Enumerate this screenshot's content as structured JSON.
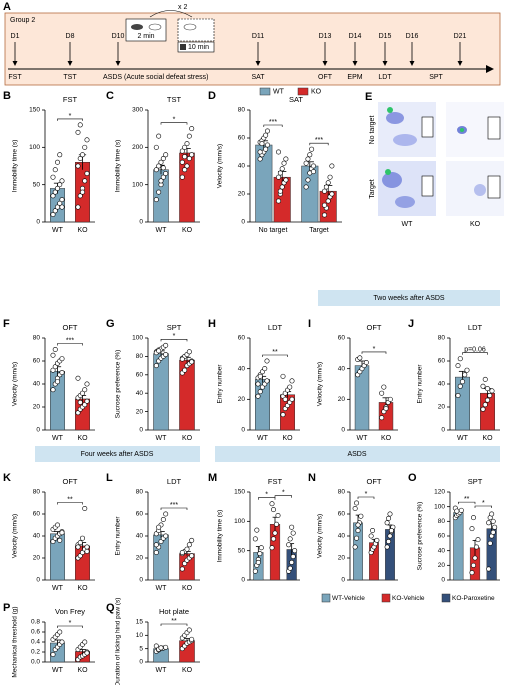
{
  "timeline": {
    "label": "A",
    "group": "Group 2",
    "cycle": "x 2",
    "durations": [
      "2 min",
      "10 min"
    ],
    "days": [
      "D1",
      "D8",
      "D10",
      "D11",
      "D13",
      "D14",
      "D15",
      "D16",
      "D21"
    ],
    "tests": [
      "FST",
      "TST",
      "ASDS (Acute social defeat stress)",
      "SAT",
      "OFT",
      "EPM",
      "LDT",
      "SPT"
    ]
  },
  "heatmap": {
    "label": "E",
    "rows": [
      "No target",
      "Target"
    ],
    "columns": [
      "WT",
      "KO"
    ]
  },
  "banners": [
    "Two weeks after ASDS",
    "Four weeks after ASDS",
    "ASDS"
  ],
  "chart_data": [
    {
      "type": "bar",
      "label": "B",
      "title": "FST",
      "ylabel": "Immobility time (s)",
      "categories": [
        "WT",
        "KO"
      ],
      "values": [
        45,
        80
      ],
      "errors": [
        7,
        10
      ],
      "points": [
        [
          10,
          15,
          20,
          25,
          30,
          35,
          40,
          45,
          50,
          55,
          60,
          70,
          80,
          90,
          20
        ],
        [
          20,
          35,
          45,
          55,
          65,
          75,
          85,
          90,
          100,
          110,
          120,
          130,
          40
        ]
      ],
      "colors": [
        "#7aa5bb",
        "#d42a2a"
      ],
      "ylim": [
        0,
        150
      ],
      "yticks": [
        0,
        50,
        100,
        150
      ],
      "significance": [
        {
          "label": "*",
          "between": [
            "WT",
            "KO"
          ]
        }
      ]
    },
    {
      "type": "bar",
      "label": "C",
      "title": "TST",
      "ylabel": "Immobility time (s)",
      "categories": [
        "WT",
        "KO"
      ],
      "values": [
        140,
        185
      ],
      "errors": [
        12,
        12
      ],
      "points": [
        [
          60,
          80,
          100,
          120,
          130,
          140,
          150,
          160,
          170,
          180,
          200,
          230,
          110,
          145
        ],
        [
          120,
          140,
          150,
          170,
          180,
          190,
          200,
          210,
          230,
          250,
          160,
          175
        ]
      ],
      "colors": [
        "#7aa5bb",
        "#d42a2a"
      ],
      "ylim": [
        0,
        300
      ],
      "yticks": [
        0,
        100,
        200,
        300
      ],
      "significance": [
        {
          "label": "*",
          "between": [
            "WT",
            "KO"
          ]
        }
      ]
    },
    {
      "type": "grouped_bar",
      "label": "D",
      "title": "SAT",
      "ylabel": "Velocity (mm/s)",
      "categories": [
        "No target",
        "Target"
      ],
      "series": [
        {
          "name": "WT",
          "color": "#7aa5bb",
          "values": [
            55,
            40
          ],
          "errors": [
            3,
            3
          ],
          "points": [
            [
              45,
              48,
              50,
              52,
              55,
              57,
              58,
              60,
              62,
              65,
              50,
              56
            ],
            [
              25,
              30,
              35,
              38,
              40,
              42,
              45,
              48,
              52,
              36
            ]
          ]
        },
        {
          "name": "KO",
          "color": "#d42a2a",
          "values": [
            32,
            22
          ],
          "errors": [
            4,
            4
          ],
          "points": [
            [
              15,
              20,
              25,
              28,
              30,
              32,
              35,
              38,
              42,
              45,
              50,
              22
            ],
            [
              5,
              10,
              15,
              18,
              20,
              22,
              25,
              28,
              32,
              40,
              12
            ]
          ]
        }
      ],
      "ylim": [
        0,
        80
      ],
      "yticks": [
        0,
        20,
        40,
        60,
        80
      ],
      "significance": [
        {
          "label": "***",
          "category": "No target"
        },
        {
          "label": "***",
          "category": "Target"
        }
      ]
    },
    {
      "type": "bar",
      "label": "F",
      "title": "OFT",
      "ylabel": "Velocity (mm/s)",
      "categories": [
        "WT",
        "KO"
      ],
      "values": [
        51,
        27
      ],
      "errors": [
        4,
        3
      ],
      "points": [
        [
          35,
          40,
          45,
          48,
          50,
          52,
          55,
          58,
          60,
          62,
          65,
          70,
          42
        ],
        [
          15,
          18,
          20,
          22,
          25,
          28,
          30,
          32,
          35,
          40,
          45,
          24
        ]
      ],
      "colors": [
        "#7aa5bb",
        "#d42a2a"
      ],
      "ylim": [
        0,
        80
      ],
      "yticks": [
        0,
        20,
        40,
        60,
        80
      ],
      "significance": [
        {
          "label": "***",
          "between": [
            "WT",
            "KO"
          ]
        }
      ]
    },
    {
      "type": "bar",
      "label": "G",
      "title": "SPT",
      "ylabel": "Sucrose preference (%)",
      "categories": [
        "WT",
        "KO"
      ],
      "values": [
        83,
        76
      ],
      "errors": [
        3,
        3
      ],
      "points": [
        [
          70,
          75,
          78,
          80,
          82,
          85,
          87,
          88,
          90,
          92,
          84,
          86
        ],
        [
          62,
          65,
          70,
          72,
          75,
          78,
          80,
          82,
          85,
          74,
          77
        ]
      ],
      "colors": [
        "#7aa5bb",
        "#d42a2a"
      ],
      "ylim": [
        0,
        100
      ],
      "yticks": [
        0,
        20,
        40,
        60,
        80,
        100
      ],
      "significance": [
        {
          "label": "*",
          "between": [
            "WT",
            "KO"
          ]
        }
      ]
    },
    {
      "type": "bar",
      "label": "H",
      "title": "LDT",
      "ylabel": "Entry number",
      "categories": [
        "WT",
        "KO"
      ],
      "values": [
        33,
        23
      ],
      "errors": [
        2,
        2
      ],
      "points": [
        [
          22,
          25,
          28,
          30,
          32,
          34,
          36,
          38,
          40,
          45,
          30,
          35
        ],
        [
          10,
          14,
          16,
          18,
          20,
          22,
          24,
          26,
          28,
          32,
          35,
          20
        ]
      ],
      "colors": [
        "#7aa5bb",
        "#d42a2a"
      ],
      "ylim": [
        0,
        60
      ],
      "yticks": [
        0,
        20,
        40,
        60
      ],
      "significance": [
        {
          "label": "**",
          "between": [
            "WT",
            "KO"
          ]
        }
      ]
    },
    {
      "type": "bar",
      "label": "I",
      "title": "OFT",
      "ylabel": "Velocity (mm/s)",
      "categories": [
        "WT",
        "KO"
      ],
      "values": [
        42,
        18
      ],
      "errors": [
        3,
        3
      ],
      "points": [
        [
          36,
          38,
          40,
          42,
          44,
          46,
          47
        ],
        [
          8,
          12,
          15,
          18,
          20,
          24,
          28,
          14
        ]
      ],
      "colors": [
        "#7aa5bb",
        "#d42a2a"
      ],
      "ylim": [
        0,
        60
      ],
      "yticks": [
        0,
        20,
        40,
        60
      ],
      "significance": [
        {
          "label": "*",
          "between": [
            "WT",
            "KO"
          ]
        }
      ]
    },
    {
      "type": "bar",
      "label": "J",
      "title": "LDT",
      "ylabel": "Entry number",
      "categories": [
        "WT",
        "KO"
      ],
      "values": [
        46,
        32
      ],
      "errors": [
        5,
        4
      ],
      "points": [
        [
          30,
          38,
          42,
          48,
          52,
          56,
          62
        ],
        [
          18,
          22,
          26,
          30,
          34,
          38,
          44,
          36
        ]
      ],
      "colors": [
        "#7aa5bb",
        "#d42a2a"
      ],
      "ylim": [
        0,
        80
      ],
      "yticks": [
        0,
        20,
        40,
        60,
        80
      ],
      "significance": [
        {
          "label": "p=0.06",
          "between": [
            "WT",
            "KO"
          ]
        }
      ]
    },
    {
      "type": "bar",
      "label": "K",
      "title": "OFT",
      "ylabel": "Velocity (mm/s)",
      "categories": [
        "WT",
        "KO"
      ],
      "values": [
        42,
        31
      ],
      "errors": [
        2,
        3
      ],
      "points": [
        [
          35,
          38,
          40,
          42,
          44,
          46,
          48,
          50,
          36,
          43
        ],
        [
          20,
          22,
          25,
          28,
          30,
          32,
          34,
          38,
          65,
          26,
          30
        ]
      ],
      "colors": [
        "#7aa5bb",
        "#d42a2a"
      ],
      "ylim": [
        0,
        80
      ],
      "yticks": [
        0,
        20,
        40,
        60,
        80
      ],
      "significance": [
        {
          "label": "**",
          "between": [
            "WT",
            "KO"
          ]
        }
      ]
    },
    {
      "type": "bar",
      "label": "L",
      "title": "LDT",
      "ylabel": "Entry number",
      "categories": [
        "WT",
        "KO"
      ],
      "values": [
        41,
        24
      ],
      "errors": [
        3,
        2
      ],
      "points": [
        [
          25,
          30,
          35,
          38,
          40,
          42,
          45,
          50,
          55,
          60,
          32,
          48
        ],
        [
          10,
          15,
          18,
          20,
          22,
          24,
          26,
          28,
          32,
          36,
          25
        ]
      ],
      "colors": [
        "#7aa5bb",
        "#d42a2a"
      ],
      "ylim": [
        0,
        80
      ],
      "yticks": [
        0,
        20,
        40,
        60,
        80
      ],
      "significance": [
        {
          "label": "***",
          "between": [
            "WT",
            "KO"
          ]
        }
      ]
    },
    {
      "type": "bar",
      "label": "M",
      "title": "FST",
      "ylabel": "Immobility time (s)",
      "categories": [
        null,
        null,
        null
      ],
      "values": [
        47,
        95,
        52
      ],
      "errors": [
        10,
        12,
        10
      ],
      "points": [
        [
          15,
          25,
          35,
          45,
          55,
          70,
          85,
          30
        ],
        [
          55,
          70,
          80,
          95,
          110,
          130,
          120
        ],
        [
          15,
          20,
          30,
          40,
          50,
          60,
          70,
          90,
          80
        ]
      ],
      "colors": [
        "#7aa5bb",
        "#d42a2a",
        "#34507a"
      ],
      "ylim": [
        0,
        150
      ],
      "yticks": [
        0,
        50,
        100,
        150
      ],
      "significance": [
        {
          "label": "*",
          "between": [
            "WT-Vehicle",
            "KO-Vehicle"
          ]
        },
        {
          "label": "*",
          "between": [
            "KO-Vehicle",
            "KO-Paroxetine"
          ]
        }
      ]
    },
    {
      "type": "bar",
      "label": "N",
      "title": "OFT",
      "ylabel": "Velocity (mm/s)",
      "categories": [
        null,
        null,
        null
      ],
      "values": [
        52,
        34,
        46
      ],
      "errors": [
        7,
        3,
        4
      ],
      "points": [
        [
          30,
          38,
          45,
          52,
          58,
          65,
          70,
          50
        ],
        [
          25,
          28,
          30,
          33,
          36,
          40,
          45
        ],
        [
          30,
          35,
          40,
          44,
          48,
          52,
          56,
          60,
          45
        ]
      ],
      "colors": [
        "#7aa5bb",
        "#d42a2a",
        "#34507a"
      ],
      "ylim": [
        0,
        80
      ],
      "yticks": [
        0,
        20,
        40,
        60,
        80
      ],
      "legend": [
        "WT-Vehicle",
        "KO-Vehicle",
        "KO-Paroxetine"
      ],
      "significance": [
        {
          "label": "*",
          "between": [
            "WT-Vehicle",
            "KO-Vehicle"
          ]
        }
      ]
    },
    {
      "type": "bar",
      "label": "O",
      "title": "SPT",
      "ylabel": "Sucrose preference (%)",
      "categories": [
        null,
        null,
        null
      ],
      "values": [
        92,
        44,
        70
      ],
      "errors": [
        3,
        10,
        8
      ],
      "points": [
        [
          85,
          88,
          90,
          92,
          95,
          98,
          94
        ],
        [
          10,
          20,
          30,
          45,
          55,
          70,
          85
        ],
        [
          15,
          50,
          60,
          65,
          72,
          78,
          85,
          90,
          80
        ]
      ],
      "colors": [
        "#7aa5bb",
        "#d42a2a",
        "#34507a"
      ],
      "ylim": [
        0,
        120
      ],
      "yticks": [
        0,
        20,
        40,
        60,
        80,
        100,
        120
      ],
      "significance": [
        {
          "label": "**",
          "between": [
            "WT-Vehicle",
            "KO-Vehicle"
          ]
        },
        {
          "label": "*",
          "between": [
            "KO-Vehicle",
            "KO-Paroxetine"
          ]
        }
      ]
    },
    {
      "type": "bar",
      "label": "P",
      "title": "Von Frey",
      "ylabel": "Mechanical threshold (g)",
      "categories": [
        "WT",
        "KO"
      ],
      "values": [
        0.38,
        0.21
      ],
      "errors": [
        0.06,
        0.04
      ],
      "points": [
        [
          0.15,
          0.25,
          0.3,
          0.35,
          0.4,
          0.45,
          0.5,
          0.55,
          0.6
        ],
        [
          0.05,
          0.1,
          0.12,
          0.15,
          0.2,
          0.25,
          0.3,
          0.35,
          0.4,
          0.18
        ]
      ],
      "colors": [
        "#7aa5bb",
        "#d42a2a"
      ],
      "ylim": [
        0,
        0.8
      ],
      "yticks": [
        {
          "value": 0,
          "label": "0.0"
        },
        0.2,
        0.4,
        0.6,
        0.8
      ],
      "significance": [
        {
          "label": "*",
          "between": [
            "WT",
            "KO"
          ]
        }
      ]
    },
    {
      "type": "bar",
      "label": "Q",
      "title": "Hot plate",
      "ylabel": "Duration of licking hind paw (s)",
      "categories": [
        "WT",
        "KO"
      ],
      "values": [
        5,
        8
      ],
      "errors": [
        0.3,
        0.8
      ],
      "points": [
        [
          4,
          4.5,
          5,
          5.2,
          5.5,
          6,
          4.8,
          5.3
        ],
        [
          5,
          6,
          7,
          7.5,
          8,
          9,
          10,
          11,
          12,
          8.5
        ]
      ],
      "colors": [
        "#7aa5bb",
        "#d42a2a"
      ],
      "ylim": [
        0,
        15
      ],
      "yticks": [
        0,
        5,
        10,
        15
      ],
      "significance": [
        {
          "label": "**",
          "between": [
            "WT",
            "KO"
          ]
        }
      ]
    }
  ]
}
